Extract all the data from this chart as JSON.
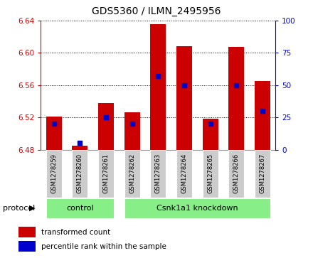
{
  "title": "GDS5360 / ILMN_2495956",
  "samples": [
    "GSM1278259",
    "GSM1278260",
    "GSM1278261",
    "GSM1278262",
    "GSM1278263",
    "GSM1278264",
    "GSM1278265",
    "GSM1278266",
    "GSM1278267"
  ],
  "red_values": [
    6.521,
    6.485,
    6.538,
    6.526,
    6.636,
    6.608,
    6.518,
    6.607,
    6.565
  ],
  "blue_values_pct": [
    20,
    5,
    25,
    20,
    57,
    50,
    20,
    50,
    30
  ],
  "ylim_left": [
    6.48,
    6.64
  ],
  "ylim_right": [
    0,
    100
  ],
  "yticks_left": [
    6.48,
    6.52,
    6.56,
    6.6,
    6.64
  ],
  "yticks_right": [
    0,
    25,
    50,
    75,
    100
  ],
  "control_count": 3,
  "knockdown_count": 6,
  "control_label": "control",
  "knockdown_label": "Csnk1a1 knockdown",
  "protocol_label": "protocol",
  "legend_red": "transformed count",
  "legend_blue": "percentile rank within the sample",
  "bar_color": "#cc0000",
  "blue_color": "#0000cc",
  "bar_width": 0.6,
  "base_value": 6.48,
  "tick_label_color_left": "#cc0000",
  "tick_label_color_right": "#0000cc",
  "protocol_box_color": "#88ee88",
  "sample_box_color": "#cccccc"
}
